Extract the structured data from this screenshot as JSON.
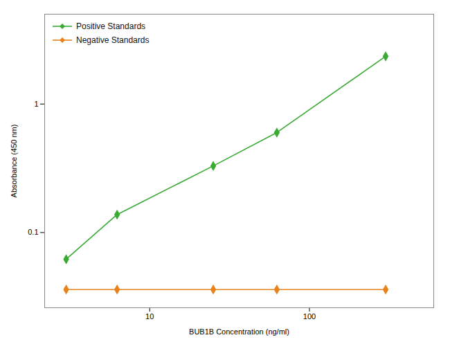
{
  "chart_data": {
    "type": "line",
    "x": [
      3.0,
      6.25,
      25.0,
      62.5,
      300.0
    ],
    "series": [
      {
        "name": "Positive Standards",
        "color": "#3aaa35",
        "values": [
          0.062,
          0.138,
          0.33,
          0.6,
          2.35
        ]
      },
      {
        "name": "Negative Standards",
        "color": "#e8821a",
        "values": [
          0.036,
          0.036,
          0.036,
          0.036,
          0.036
        ]
      }
    ],
    "xlabel": "BUB1B Concentration (ng/ml)",
    "ylabel": "Absorbance (450 nm)",
    "log": true,
    "xlim": [
      2.2,
      600
    ],
    "ylim": [
      0.026,
      5.0
    ],
    "xticks": [
      10,
      100
    ],
    "yticks": [
      0.1,
      1
    ],
    "marker": "diamond",
    "grid": false,
    "legend": "upper left"
  }
}
